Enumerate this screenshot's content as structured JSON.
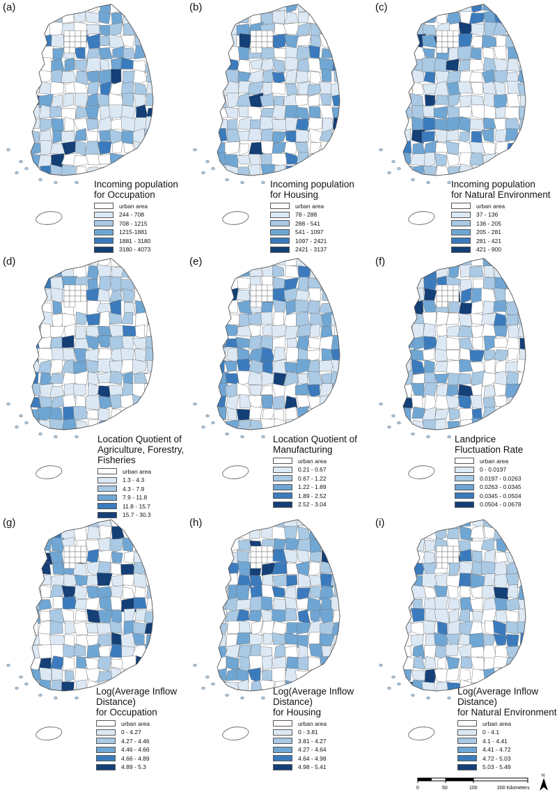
{
  "panels": [
    {
      "label": "(a)",
      "title": [
        "Incoming population",
        "for Occupation"
      ],
      "classes": [
        "urban area",
        "244 - 708",
        "708 - 1215",
        "1215-1881",
        "1881 - 3180",
        "3180 - 4073"
      ]
    },
    {
      "label": "(b)",
      "title": [
        "Incoming population",
        "for Housing"
      ],
      "classes": [
        "urban area",
        "78 - 288",
        "288 - 541",
        "541 - 1097",
        "1097 - 2421",
        "2421 - 3137"
      ]
    },
    {
      "label": "(c)",
      "title": [
        "Incoming population",
        "for Natural Environment"
      ],
      "classes": [
        "urban area",
        "37 - 136",
        "136 - 205",
        "205 - 281",
        "281 - 421",
        "421 - 900"
      ]
    },
    {
      "label": "(d)",
      "title": [
        "Location Quotient of",
        "Agriculture, Forestry,",
        "Fisheries"
      ],
      "classes": [
        "urban area",
        "1.3 - 4.3",
        "4.3 - 7.9",
        "7.9 - 11.8",
        "11.8 - 15.7",
        "15.7 - 30.3"
      ]
    },
    {
      "label": "(e)",
      "title": [
        "Location Quotient of",
        "Manufacturing"
      ],
      "classes": [
        "urban area",
        "0.21 - 0.67",
        "0.67 - 1.22",
        "1.22 - 1.89",
        "1.89 - 2.52",
        "2.52 - 3.04"
      ]
    },
    {
      "label": "(f)",
      "title": [
        "Landprice",
        "Fluctuation Rate"
      ],
      "classes": [
        "urban area",
        "0 - 0.0197",
        "0.0197 - 0.0263",
        "0.0263 - 0.0345",
        "0.0345 - 0.0504",
        "0.0504 - 0.0678"
      ]
    },
    {
      "label": "(g)",
      "title": [
        "Log(Average Inflow",
        "Distance)",
        "for Occupation"
      ],
      "classes": [
        "urban area",
        "0 - 4.27",
        "4.27 - 4.46",
        "4.46 - 4.66",
        "4.66 - 4.89",
        "4.89 - 5.3"
      ]
    },
    {
      "label": "(h)",
      "title": [
        "Log(Average Inflow",
        "Distance)",
        "for Housing"
      ],
      "classes": [
        "urban area",
        "0 - 3.81",
        "3.81 - 4.27",
        "4.27 - 4.64",
        "4.64 - 4.98",
        "4.98 - 5.41"
      ]
    },
    {
      "label": "(i)",
      "title": [
        "Log(Average Inflow",
        "Distance)",
        "for Natural Environment"
      ],
      "classes": [
        "urban area",
        "0 - 4.1",
        "4.1 - 4.41",
        "4.41 - 4.72",
        "4.72 - 5.03",
        "5.03 - 5.49"
      ]
    }
  ],
  "class_colors": [
    "#ffffff",
    "#dce9f5",
    "#a9c9e4",
    "#6fa6d3",
    "#3b7bbd",
    "#143f77"
  ],
  "scale_bar": {
    "ticks": [
      "0",
      "50",
      "100",
      "200 Kilometers"
    ]
  },
  "north_arrow": {
    "label": "N"
  }
}
